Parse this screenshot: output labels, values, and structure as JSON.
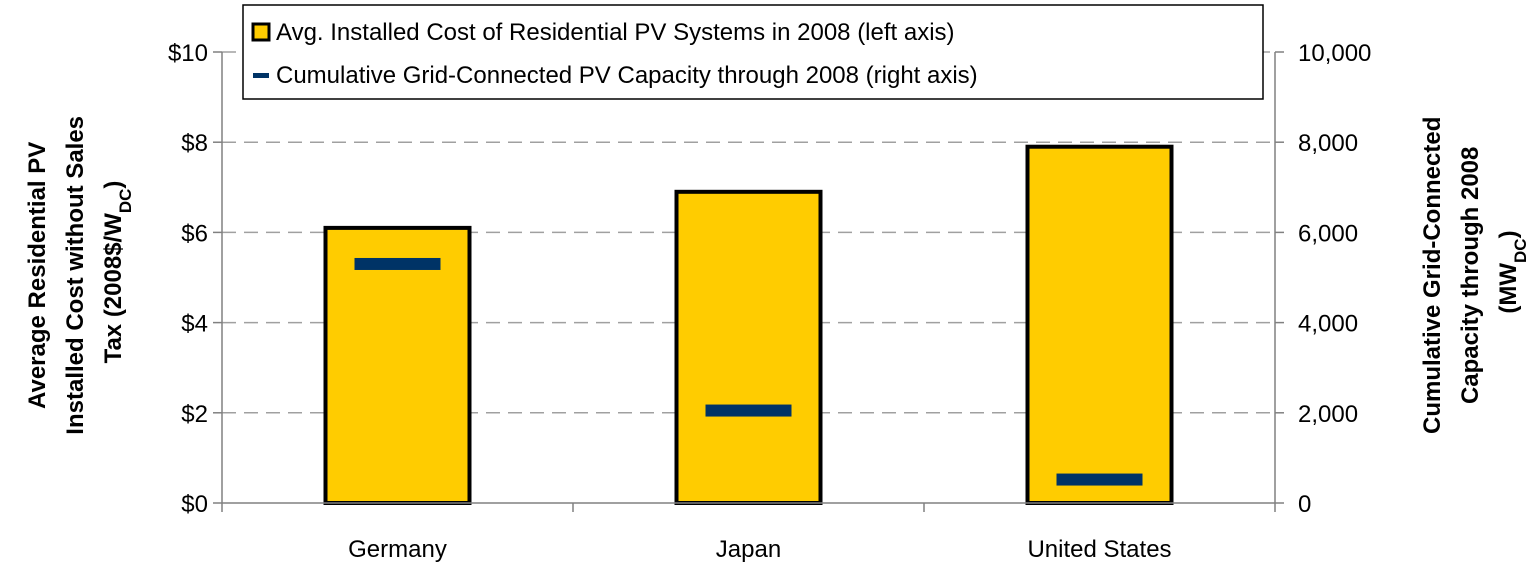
{
  "chart_data": {
    "type": "bar",
    "categories": [
      "Germany",
      "Japan",
      "United States"
    ],
    "series": [
      {
        "name": "Avg. Installed Cost of Residential PV Systems in 2008 (left axis)",
        "axis": "left",
        "kind": "bar",
        "values": [
          6.1,
          6.9,
          7.9
        ]
      },
      {
        "name": "Cumulative Grid-Connected PV Capacity through 2008 (right axis)",
        "axis": "right",
        "kind": "marker",
        "values": [
          5300,
          2050,
          520
        ]
      }
    ],
    "y_left": {
      "label_lines": [
        "Average Residential PV",
        "Installed Cost without Sales",
        "Tax (2008$/W"
      ],
      "label_subscript": "DC",
      "label_suffix": ")",
      "ylim": [
        0,
        10
      ],
      "ticks": [
        "$0",
        "$2",
        "$4",
        "$6",
        "$8",
        "$10"
      ]
    },
    "y_right": {
      "label_lines": [
        "Cumulative Grid-Connected",
        "Capacity through 2008",
        "(MW"
      ],
      "label_subscript": "DC",
      "label_suffix": ")",
      "ylim": [
        0,
        10000
      ],
      "ticks": [
        "0",
        "2,000",
        "4,000",
        "6,000",
        "8,000",
        "10,000"
      ]
    },
    "grid": true,
    "legend_position": "top",
    "colors": {
      "bar_fill": "#FFCC00",
      "bar_stroke": "#000000",
      "marker": "#003366",
      "grid": "#A0A0A0"
    }
  }
}
